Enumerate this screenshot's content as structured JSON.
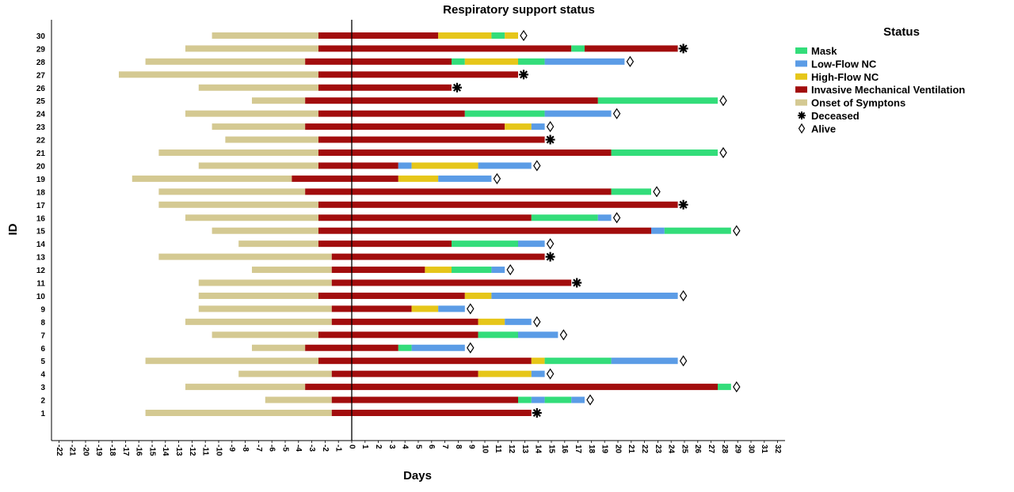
{
  "chart_data": {
    "type": "bar",
    "orientation": "horizontal-stacked-timeline",
    "title": "Respiratory support status",
    "xlabel": "Days",
    "ylabel": "ID",
    "xlim": [
      -22,
      32
    ],
    "x_ticks": [
      -22,
      -21,
      -20,
      -19,
      -18,
      -17,
      -16,
      -15,
      -14,
      -13,
      -12,
      -11,
      -10,
      -9,
      -8,
      -7,
      -6,
      -5,
      -4,
      -3,
      -2,
      -1,
      0,
      1,
      2,
      3,
      4,
      5,
      6,
      7,
      8,
      9,
      10,
      11,
      12,
      13,
      14,
      15,
      16,
      17,
      18,
      19,
      20,
      21,
      22,
      23,
      24,
      25,
      26,
      27,
      28,
      29,
      30,
      31,
      32
    ],
    "reference_line_x": 0,
    "legend": {
      "title": "Status",
      "position": "right",
      "items": [
        {
          "key": "mask",
          "label": "Mask",
          "color": "#33dd7a",
          "kind": "bar"
        },
        {
          "key": "low",
          "label": "Low-Flow NC",
          "color": "#5b9ce6",
          "kind": "bar"
        },
        {
          "key": "high",
          "label": "High-Flow NC",
          "color": "#e6c619",
          "kind": "bar"
        },
        {
          "key": "imv",
          "label": "Invasive Mechanical Ventilation",
          "color": "#a20d0d",
          "kind": "bar"
        },
        {
          "key": "onset",
          "label": "Onset of Symptons",
          "color": "#d4c992",
          "kind": "bar"
        },
        {
          "key": "deceased",
          "label": "Deceased",
          "color": "#000000",
          "kind": "star"
        },
        {
          "key": "alive",
          "label": "Alive",
          "color": "#000000",
          "kind": "diamond"
        }
      ]
    },
    "patients": [
      {
        "id": "1",
        "onset": [
          -15.5,
          -1.5
        ],
        "segments": [
          {
            "s": "imv",
            "from": -1.5,
            "to": 13.5
          }
        ],
        "outcome": "deceased",
        "end": 13.5
      },
      {
        "id": "2",
        "onset": [
          -6.5,
          -1.5
        ],
        "segments": [
          {
            "s": "imv",
            "from": -1.5,
            "to": 12.5
          },
          {
            "s": "mask",
            "from": 12.5,
            "to": 13.5
          },
          {
            "s": "low",
            "from": 13.5,
            "to": 14.5
          },
          {
            "s": "mask",
            "from": 14.5,
            "to": 16.5
          },
          {
            "s": "low",
            "from": 16.5,
            "to": 17.5
          }
        ],
        "outcome": "alive",
        "end": 17.5
      },
      {
        "id": "3",
        "onset": [
          -12.5,
          -3.5
        ],
        "segments": [
          {
            "s": "imv",
            "from": -3.5,
            "to": 27.5
          },
          {
            "s": "mask",
            "from": 27.5,
            "to": 28.5
          }
        ],
        "outcome": "alive",
        "end": 28.5
      },
      {
        "id": "4",
        "onset": [
          -8.5,
          -1.5
        ],
        "segments": [
          {
            "s": "imv",
            "from": -1.5,
            "to": 9.5
          },
          {
            "s": "high",
            "from": 9.5,
            "to": 13.5
          },
          {
            "s": "low",
            "from": 13.5,
            "to": 14.5
          }
        ],
        "outcome": "alive",
        "end": 14.5
      },
      {
        "id": "5",
        "onset": [
          -15.5,
          -2.5
        ],
        "segments": [
          {
            "s": "imv",
            "from": -2.5,
            "to": 13.5
          },
          {
            "s": "high",
            "from": 13.5,
            "to": 14.5
          },
          {
            "s": "mask",
            "from": 14.5,
            "to": 19.5
          },
          {
            "s": "low",
            "from": 19.5,
            "to": 24.5
          }
        ],
        "outcome": "alive",
        "end": 24.5
      },
      {
        "id": "6",
        "onset": [
          -7.5,
          -3.5
        ],
        "segments": [
          {
            "s": "imv",
            "from": -3.5,
            "to": 3.5
          },
          {
            "s": "mask",
            "from": 3.5,
            "to": 4.5
          },
          {
            "s": "low",
            "from": 4.5,
            "to": 8.5
          }
        ],
        "outcome": "alive",
        "end": 8.5
      },
      {
        "id": "7",
        "onset": [
          -10.5,
          -2.5
        ],
        "segments": [
          {
            "s": "imv",
            "from": -2.5,
            "to": 9.5
          },
          {
            "s": "mask",
            "from": 9.5,
            "to": 12.5
          },
          {
            "s": "low",
            "from": 12.5,
            "to": 15.5
          }
        ],
        "outcome": "alive",
        "end": 15.5
      },
      {
        "id": "8",
        "onset": [
          -12.5,
          -1.5
        ],
        "segments": [
          {
            "s": "imv",
            "from": -1.5,
            "to": 9.5
          },
          {
            "s": "high",
            "from": 9.5,
            "to": 11.5
          },
          {
            "s": "low",
            "from": 11.5,
            "to": 13.5
          }
        ],
        "outcome": "alive",
        "end": 13.5
      },
      {
        "id": "9",
        "onset": [
          -11.5,
          -1.5
        ],
        "segments": [
          {
            "s": "imv",
            "from": -1.5,
            "to": 4.5
          },
          {
            "s": "high",
            "from": 4.5,
            "to": 6.5
          },
          {
            "s": "low",
            "from": 6.5,
            "to": 8.5
          }
        ],
        "outcome": "alive",
        "end": 8.5
      },
      {
        "id": "10",
        "onset": [
          -11.5,
          -2.5
        ],
        "segments": [
          {
            "s": "imv",
            "from": -2.5,
            "to": 8.5
          },
          {
            "s": "high",
            "from": 8.5,
            "to": 10.5
          },
          {
            "s": "low",
            "from": 10.5,
            "to": 24.5
          }
        ],
        "outcome": "alive",
        "end": 24.5
      },
      {
        "id": "11",
        "onset": [
          -11.5,
          -1.5
        ],
        "segments": [
          {
            "s": "imv",
            "from": -1.5,
            "to": 16.5
          }
        ],
        "outcome": "deceased",
        "end": 16.5
      },
      {
        "id": "12",
        "onset": [
          -7.5,
          -1.5
        ],
        "segments": [
          {
            "s": "imv",
            "from": -1.5,
            "to": 5.5
          },
          {
            "s": "high",
            "from": 5.5,
            "to": 7.5
          },
          {
            "s": "mask",
            "from": 7.5,
            "to": 10.5
          },
          {
            "s": "low",
            "from": 10.5,
            "to": 11.5
          }
        ],
        "outcome": "alive",
        "end": 11.5
      },
      {
        "id": "13",
        "onset": [
          -14.5,
          -1.5
        ],
        "segments": [
          {
            "s": "imv",
            "from": -1.5,
            "to": 14.5
          }
        ],
        "outcome": "deceased",
        "end": 14.5
      },
      {
        "id": "14",
        "onset": [
          -8.5,
          -2.5
        ],
        "segments": [
          {
            "s": "imv",
            "from": -2.5,
            "to": 7.5
          },
          {
            "s": "mask",
            "from": 7.5,
            "to": 12.5
          },
          {
            "s": "low",
            "from": 12.5,
            "to": 14.5
          }
        ],
        "outcome": "alive",
        "end": 14.5
      },
      {
        "id": "15",
        "onset": [
          -10.5,
          -2.5
        ],
        "segments": [
          {
            "s": "imv",
            "from": -2.5,
            "to": 22.5
          },
          {
            "s": "low",
            "from": 22.5,
            "to": 23.5
          },
          {
            "s": "mask",
            "from": 23.5,
            "to": 28.5
          }
        ],
        "outcome": "alive",
        "end": 28.5
      },
      {
        "id": "16",
        "onset": [
          -12.5,
          -2.5
        ],
        "segments": [
          {
            "s": "imv",
            "from": -2.5,
            "to": 13.5
          },
          {
            "s": "mask",
            "from": 13.5,
            "to": 18.5
          },
          {
            "s": "low",
            "from": 18.5,
            "to": 19.5
          }
        ],
        "outcome": "alive",
        "end": 19.5
      },
      {
        "id": "17",
        "onset": [
          -14.5,
          -2.5
        ],
        "segments": [
          {
            "s": "imv",
            "from": -2.5,
            "to": 24.5
          }
        ],
        "outcome": "deceased",
        "end": 24.5
      },
      {
        "id": "18",
        "onset": [
          -14.5,
          -3.5
        ],
        "segments": [
          {
            "s": "imv",
            "from": -3.5,
            "to": 19.5
          },
          {
            "s": "mask",
            "from": 19.5,
            "to": 22.5
          }
        ],
        "outcome": "alive",
        "end": 22.5
      },
      {
        "id": "19",
        "onset": [
          -16.5,
          -4.5
        ],
        "segments": [
          {
            "s": "imv",
            "from": -4.5,
            "to": 3.5
          },
          {
            "s": "high",
            "from": 3.5,
            "to": 6.5
          },
          {
            "s": "low",
            "from": 6.5,
            "to": 10.5
          }
        ],
        "outcome": "alive",
        "end": 10.5
      },
      {
        "id": "20",
        "onset": [
          -11.5,
          -2.5
        ],
        "segments": [
          {
            "s": "imv",
            "from": -2.5,
            "to": 3.5
          },
          {
            "s": "low",
            "from": 3.5,
            "to": 4.5
          },
          {
            "s": "high",
            "from": 4.5,
            "to": 9.5
          },
          {
            "s": "low",
            "from": 9.5,
            "to": 13.5
          }
        ],
        "outcome": "alive",
        "end": 13.5
      },
      {
        "id": "21",
        "onset": [
          -14.5,
          -2.5
        ],
        "segments": [
          {
            "s": "imv",
            "from": -2.5,
            "to": 19.5
          },
          {
            "s": "mask",
            "from": 19.5,
            "to": 27.5
          }
        ],
        "outcome": "alive",
        "end": 27.5
      },
      {
        "id": "22",
        "onset": [
          -9.5,
          -2.5
        ],
        "segments": [
          {
            "s": "imv",
            "from": -2.5,
            "to": 14.5
          }
        ],
        "outcome": "deceased",
        "end": 14.5
      },
      {
        "id": "23",
        "onset": [
          -10.5,
          -3.5
        ],
        "segments": [
          {
            "s": "imv",
            "from": -3.5,
            "to": 11.5
          },
          {
            "s": "high",
            "from": 11.5,
            "to": 13.5
          },
          {
            "s": "low",
            "from": 13.5,
            "to": 14.5
          }
        ],
        "outcome": "alive",
        "end": 14.5
      },
      {
        "id": "24",
        "onset": [
          -12.5,
          -2.5
        ],
        "segments": [
          {
            "s": "imv",
            "from": -2.5,
            "to": 8.5
          },
          {
            "s": "mask",
            "from": 8.5,
            "to": 14.5
          },
          {
            "s": "low",
            "from": 14.5,
            "to": 19.5
          }
        ],
        "outcome": "alive",
        "end": 19.5
      },
      {
        "id": "25",
        "onset": [
          -7.5,
          -3.5
        ],
        "segments": [
          {
            "s": "imv",
            "from": -3.5,
            "to": 18.5
          },
          {
            "s": "mask",
            "from": 18.5,
            "to": 27.5
          }
        ],
        "outcome": "alive",
        "end": 27.5
      },
      {
        "id": "26",
        "onset": [
          -11.5,
          -2.5
        ],
        "segments": [
          {
            "s": "imv",
            "from": -2.5,
            "to": 7.5
          }
        ],
        "outcome": "deceased",
        "end": 7.5
      },
      {
        "id": "27",
        "onset": [
          -17.5,
          -2.5
        ],
        "segments": [
          {
            "s": "imv",
            "from": -2.5,
            "to": 12.5
          }
        ],
        "outcome": "deceased",
        "end": 12.5
      },
      {
        "id": "28",
        "onset": [
          -15.5,
          -3.5
        ],
        "segments": [
          {
            "s": "imv",
            "from": -3.5,
            "to": 7.5
          },
          {
            "s": "mask",
            "from": 7.5,
            "to": 8.5
          },
          {
            "s": "high",
            "from": 8.5,
            "to": 12.5
          },
          {
            "s": "mask",
            "from": 12.5,
            "to": 14.5
          },
          {
            "s": "low",
            "from": 14.5,
            "to": 20.5
          }
        ],
        "outcome": "alive",
        "end": 20.5
      },
      {
        "id": "29",
        "onset": [
          -12.5,
          -2.5
        ],
        "segments": [
          {
            "s": "imv",
            "from": -2.5,
            "to": 16.5
          },
          {
            "s": "mask",
            "from": 16.5,
            "to": 17.5
          },
          {
            "s": "imv",
            "from": 17.5,
            "to": 24.5
          }
        ],
        "outcome": "deceased",
        "end": 24.5
      },
      {
        "id": "30",
        "onset": [
          -10.5,
          -2.5
        ],
        "segments": [
          {
            "s": "imv",
            "from": -2.5,
            "to": 6.5
          },
          {
            "s": "high",
            "from": 6.5,
            "to": 10.5
          },
          {
            "s": "mask",
            "from": 10.5,
            "to": 11.5
          },
          {
            "s": "high",
            "from": 11.5,
            "to": 12.5
          }
        ],
        "outcome": "alive",
        "end": 12.5
      }
    ]
  }
}
